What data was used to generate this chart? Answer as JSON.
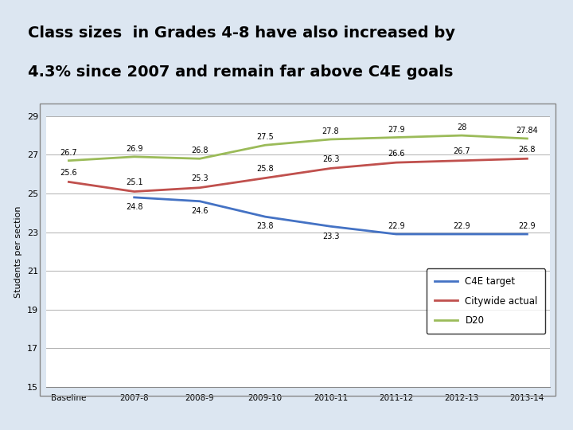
{
  "title_line1": "Class sizes  in Grades 4-8 have also increased by",
  "title_line2": "4.3% since 2007 and remain far above C4E goals",
  "title_bg": "#dce6f1",
  "outer_bg": "#dce6f1",
  "chart_bg": "#ffffff",
  "x_labels": [
    "Baseline",
    "2007-8",
    "2008-9",
    "2009-10",
    "2010-11",
    "2011-12",
    "2012-13",
    "2013-14"
  ],
  "c4e_target": [
    null,
    24.8,
    24.6,
    23.8,
    23.3,
    22.9,
    22.9,
    22.9
  ],
  "citywide_actual": [
    25.6,
    25.1,
    25.3,
    25.8,
    26.3,
    26.6,
    26.7,
    26.8
  ],
  "d20": [
    26.7,
    26.9,
    26.8,
    27.5,
    27.8,
    27.9,
    28.0,
    27.84
  ],
  "c4e_color": "#4472c4",
  "citywide_color": "#c0504d",
  "d20_color": "#9bbb59",
  "ylabel": "Students per section",
  "ylim": [
    15,
    29
  ],
  "yticks": [
    15,
    17,
    19,
    21,
    23,
    25,
    27,
    29
  ],
  "legend_labels": [
    "C4E target",
    "Citywide actual",
    "D20"
  ],
  "citywide_label_vals": [
    "25.6",
    "25.1",
    "25.3",
    "25.8",
    "26.3",
    "26.6",
    "26.7",
    "26.8"
  ],
  "d20_label_vals": [
    "26.7",
    "26.9",
    "26.8",
    "27.5",
    "27.8",
    "27.9",
    "28",
    "27.84"
  ],
  "c4e_label_vals": [
    "24.8",
    "24.6",
    "23.8",
    "23.3",
    "22.9",
    "22.9",
    "22.9"
  ]
}
